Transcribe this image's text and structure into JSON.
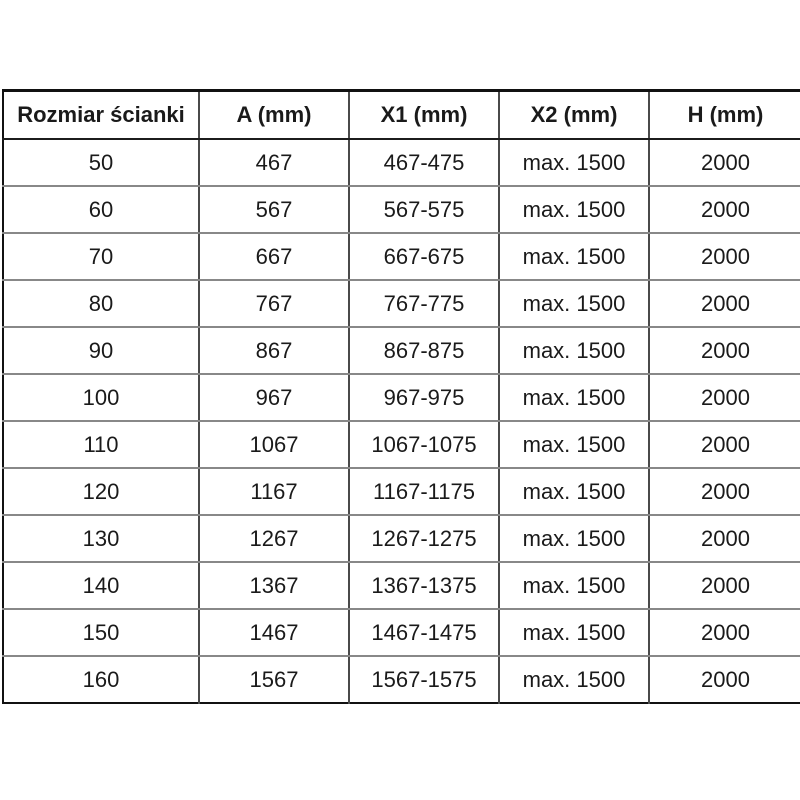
{
  "page": {
    "background_color": "#ffffff",
    "text_color": "#1a1a1a",
    "outer_border_color": "#111111",
    "grid_line_color": "#888888",
    "column_line_color": "#4a4a4a"
  },
  "table": {
    "headers": [
      "Rozmiar ścianki",
      "A (mm)",
      "X1 (mm)",
      "X2 (mm)",
      "H (mm)"
    ],
    "rows": [
      [
        "50",
        "467",
        "467-475",
        "max. 1500",
        "2000"
      ],
      [
        "60",
        "567",
        "567-575",
        "max. 1500",
        "2000"
      ],
      [
        "70",
        "667",
        "667-675",
        "max. 1500",
        "2000"
      ],
      [
        "80",
        "767",
        "767-775",
        "max. 1500",
        "2000"
      ],
      [
        "90",
        "867",
        "867-875",
        "max. 1500",
        "2000"
      ],
      [
        "100",
        "967",
        "967-975",
        "max. 1500",
        "2000"
      ],
      [
        "110",
        "1067",
        "1067-1075",
        "max. 1500",
        "2000"
      ],
      [
        "120",
        "1167",
        "1167-1175",
        "max. 1500",
        "2000"
      ],
      [
        "130",
        "1267",
        "1267-1275",
        "max. 1500",
        "2000"
      ],
      [
        "140",
        "1367",
        "1367-1375",
        "max. 1500",
        "2000"
      ],
      [
        "150",
        "1467",
        "1467-1475",
        "max. 1500",
        "2000"
      ],
      [
        "160",
        "1567",
        "1567-1575",
        "max. 1500",
        "2000"
      ]
    ]
  }
}
